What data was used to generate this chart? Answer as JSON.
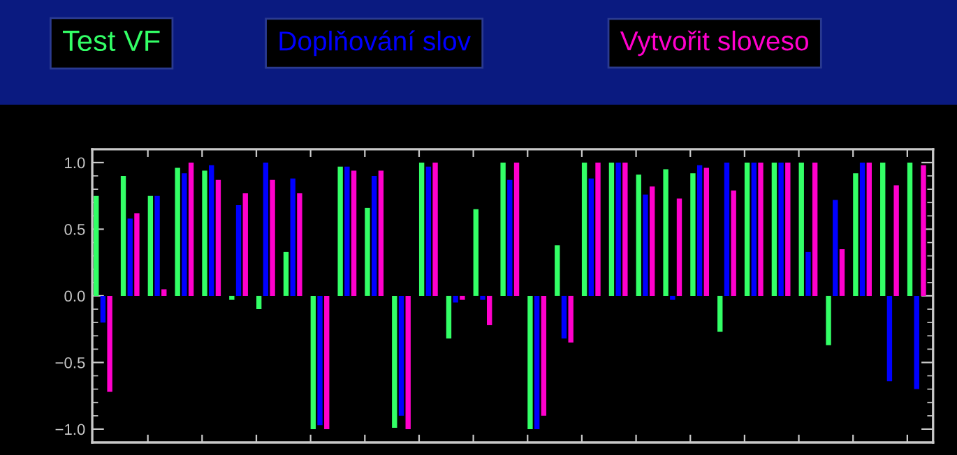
{
  "chart_data": {
    "type": "bar",
    "categories": [
      null,
      null,
      null,
      null,
      null,
      null,
      null,
      null,
      null,
      null,
      null,
      null,
      null,
      null,
      null,
      null,
      null,
      null,
      null,
      null,
      null,
      null,
      null,
      null,
      null,
      null,
      null,
      null,
      null,
      null,
      null
    ],
    "series": [
      {
        "name": "Test VF",
        "color": "#33ff66",
        "values": [
          0.75,
          0.9,
          0.75,
          0.96,
          0.94,
          -0.03,
          -0.1,
          0.33,
          -1.0,
          0.97,
          0.66,
          -0.99,
          1.0,
          -0.32,
          0.65,
          1.0,
          -1.0,
          0.38,
          1.0,
          1.0,
          0.91,
          0.95,
          0.92,
          -0.27,
          1.0,
          1.0,
          1.0,
          -0.37,
          0.92,
          1.0,
          1.0
        ]
      },
      {
        "name": "Doplňování slov",
        "color": "#0000ff",
        "values": [
          -0.2,
          0.58,
          0.75,
          0.92,
          0.98,
          0.68,
          1.0,
          0.88,
          -0.97,
          0.97,
          0.9,
          -0.9,
          0.97,
          -0.05,
          -0.03,
          0.87,
          -1.0,
          -0.32,
          0.88,
          1.0,
          0.76,
          -0.03,
          0.98,
          1.0,
          1.0,
          1.0,
          0.33,
          0.72,
          1.0,
          -0.64,
          -0.7
        ]
      },
      {
        "name": "Vytvořit sloveso",
        "color": "#ff00cc",
        "values": [
          -0.72,
          0.62,
          0.05,
          1.0,
          0.87,
          0.77,
          0.87,
          0.77,
          -1.0,
          0.94,
          0.94,
          -1.0,
          1.0,
          -0.03,
          -0.22,
          1.0,
          -0.9,
          -0.35,
          1.0,
          1.0,
          0.82,
          0.73,
          0.96,
          0.79,
          1.0,
          1.0,
          1.0,
          0.35,
          1.0,
          0.83,
          0.98
        ]
      }
    ],
    "ylim": [
      -1.1,
      1.1
    ],
    "yticks": [
      {
        "value": -1.0,
        "label": "−1.0"
      },
      {
        "value": -0.5,
        "label": "−0.5"
      },
      {
        "value": 0.0,
        "label": "0.0"
      },
      {
        "value": 0.5,
        "label": "0.5"
      },
      {
        "value": 1.0,
        "label": "1.0"
      }
    ],
    "legend": "top",
    "grid": false
  }
}
